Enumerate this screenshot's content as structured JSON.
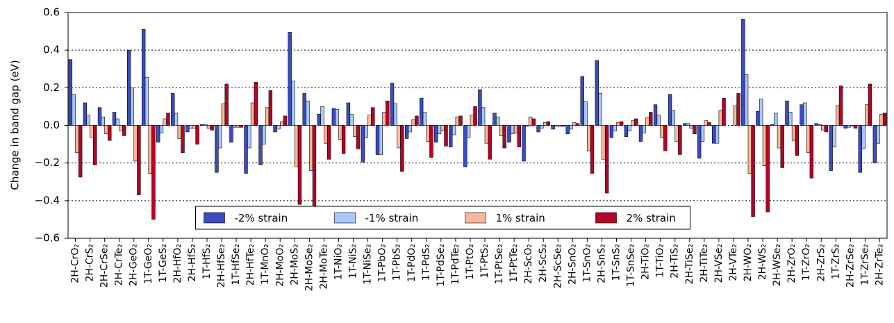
{
  "chart_data": {
    "type": "bar",
    "y_label": "Change in band gap (eV)",
    "categories": [
      "2H-CrO₂",
      "2H-CrS₂",
      "2H-CrSe₂",
      "2H-CrTe₂",
      "2H-GeO₂",
      "1T-GeO₂",
      "1T-GeS₂",
      "2H-HfO₂",
      "2H-HfS₂",
      "1T-HfS₂",
      "2H-HfSe₂",
      "1T-HfSe₂",
      "2H-HfTe₂",
      "1T-MnO₂",
      "2H-MoO₂",
      "2H-MoS₂",
      "2H-MoSe₂",
      "2H-MoTe₂",
      "1T-NiO₂",
      "1T-NiS₂",
      "1T-NiSe₂",
      "1T-PbO₂",
      "1T-PbS₂",
      "1T-PdO₂",
      "1T-PdS₂",
      "1T-PdSe₂",
      "1T-PdTe₂",
      "1T-PtO₂",
      "1T-PtS₂",
      "1T-PtSe₂",
      "1T-PtTe₂",
      "2H-ScO₂",
      "2H-ScS₂",
      "2H-ScSe₂",
      "2H-SnO₂",
      "1T-SnO₂",
      "2H-SnS₂",
      "1T-SnS₂",
      "1T-SnSe₂",
      "2H-TiO₂",
      "1T-TiO₂",
      "2H-TiS₂",
      "2H-TiSe₂",
      "2H-TiTe₂",
      "2H-VSe₂",
      "2H-VTe₂",
      "2H-WO₂",
      "2H-WS₂",
      "2H-WSe₂",
      "2H-ZrO₂",
      "1T-ZrO₂",
      "2H-ZrS₂",
      "1T-ZrS₂",
      "2H-ZrSe₂",
      "1T-ZrSe₂",
      "2H-ZrTe₂"
    ],
    "series": [
      {
        "name": "-2% strain",
        "color": "#3b4cc0",
        "values": [
          0.35,
          0.12,
          0.095,
          0.07,
          0.4,
          0.51,
          -0.09,
          0.17,
          -0.035,
          0.005,
          -0.25,
          -0.09,
          -0.255,
          -0.21,
          -0.035,
          0.495,
          0.17,
          0.06,
          0.09,
          0.12,
          -0.195,
          -0.155,
          0.225,
          -0.07,
          0.145,
          -0.09,
          -0.115,
          -0.22,
          0.19,
          0.065,
          -0.09,
          -0.19,
          -0.035,
          -0.02,
          -0.045,
          0.26,
          0.345,
          -0.065,
          -0.06,
          -0.085,
          0.11,
          0.165,
          0.01,
          -0.175,
          -0.095,
          0,
          0.565,
          0.075,
          0.005,
          0.13,
          0.11,
          0.01,
          -0.24,
          -0.015,
          -0.25,
          -0.2
        ]
      },
      {
        "name": "-1% strain",
        "color": "#aac7fd",
        "values": [
          0.165,
          0.055,
          0.045,
          0.035,
          0.2,
          0.255,
          -0.04,
          0.065,
          -0.015,
          0.005,
          -0.12,
          -0.01,
          -0.12,
          -0.1,
          -0.02,
          0.235,
          0.13,
          0.1,
          0.085,
          0.06,
          -0.065,
          -0.155,
          0.115,
          -0.035,
          0.07,
          -0.045,
          -0.05,
          -0.065,
          0.095,
          0.045,
          -0.045,
          -0.005,
          -0.015,
          -0.005,
          -0.02,
          0.125,
          0.17,
          -0.03,
          -0.03,
          -0.04,
          0.055,
          0.08,
          0.01,
          -0.085,
          -0.095,
          0,
          0.27,
          0.14,
          0.065,
          0.07,
          0.12,
          0.005,
          -0.115,
          -0.01,
          -0.125,
          -0.095
        ]
      },
      {
        "name": "1% strain",
        "color": "#f7b89c",
        "values": [
          -0.145,
          -0.065,
          -0.045,
          -0.03,
          -0.19,
          -0.255,
          0.035,
          -0.07,
          -0.015,
          -0.015,
          0.115,
          -0.01,
          0.12,
          0.095,
          0.02,
          -0.22,
          -0.24,
          -0.095,
          -0.075,
          -0.06,
          0.055,
          0.07,
          -0.12,
          0.03,
          -0.085,
          -0.03,
          0.045,
          0.055,
          -0.095,
          -0.055,
          -0.04,
          0.045,
          0.015,
          -0.005,
          0.015,
          -0.135,
          -0.18,
          0.015,
          0.025,
          0.04,
          -0.065,
          -0.085,
          -0.015,
          0.025,
          0.08,
          0.105,
          -0.255,
          -0.215,
          -0.12,
          -0.08,
          -0.145,
          -0.025,
          0.105,
          -0.005,
          0.11,
          0.06
        ]
      },
      {
        "name": "2% strain",
        "color": "#b40426",
        "values": [
          -0.275,
          -0.21,
          -0.08,
          -0.055,
          -0.37,
          -0.5,
          0.065,
          -0.145,
          -0.1,
          -0.025,
          0.22,
          -0.01,
          0.23,
          0.185,
          0.05,
          -0.42,
          -0.43,
          -0.18,
          -0.15,
          -0.125,
          0.095,
          0.13,
          -0.245,
          0.05,
          -0.17,
          -0.11,
          0.05,
          0.1,
          -0.18,
          -0.12,
          -0.115,
          0.035,
          0.02,
          -0.005,
          0.01,
          -0.255,
          -0.36,
          0.02,
          0.035,
          0.07,
          -0.135,
          -0.155,
          -0.045,
          0.015,
          0.145,
          0.17,
          -0.485,
          -0.46,
          -0.225,
          -0.16,
          -0.28,
          -0.035,
          0.21,
          -0.015,
          0.22,
          0.065
        ]
      }
    ],
    "ylim": [
      -0.6,
      0.6
    ],
    "yticks": [
      {
        "value": -0.6,
        "label": "−0.6"
      },
      {
        "value": -0.4,
        "label": "−0.4"
      },
      {
        "value": -0.2,
        "label": "−0.2"
      },
      {
        "value": 0,
        "label": "0.0"
      },
      0.2,
      0.4,
      0.6
    ],
    "grid": true,
    "legend": "lower center"
  }
}
